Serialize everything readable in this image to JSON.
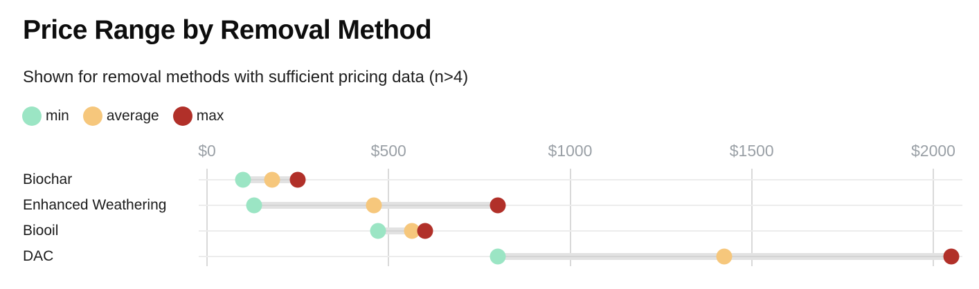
{
  "chart_data": {
    "type": "scatter",
    "variant": "dumbbell-range",
    "title": "Price Range by Removal Method",
    "subtitle": "Shown for removal methods with sufficient pricing data (n>4)",
    "categories": [
      "Biochar",
      "Enhanced Weathering",
      "Biooil",
      "DAC"
    ],
    "series": [
      {
        "name": "min",
        "color": "#9be5c4",
        "values": [
          100,
          130,
          470,
          800
        ]
      },
      {
        "name": "average",
        "color": "#f6c77c",
        "values": [
          180,
          460,
          565,
          1425
        ]
      },
      {
        "name": "max",
        "color": "#b13029",
        "values": [
          250,
          800,
          600,
          2050
        ]
      }
    ],
    "x_axis": {
      "ticks": [
        0,
        500,
        1000,
        1500,
        2000
      ],
      "tick_labels": [
        "$0",
        "$500",
        "$1000",
        "$1500",
        "$2000"
      ],
      "range": [
        0,
        2080
      ]
    },
    "layout": {
      "legend_position": "top-left",
      "grid": true,
      "orientation": "horizontal"
    },
    "colors": {
      "grid_line": "#d9d9d9",
      "row_line": "#ececec",
      "range_bar": "#e2e2e2",
      "axis_label": "#9aa0a6",
      "text": "#1d1d1d",
      "background": "#ffffff"
    }
  }
}
